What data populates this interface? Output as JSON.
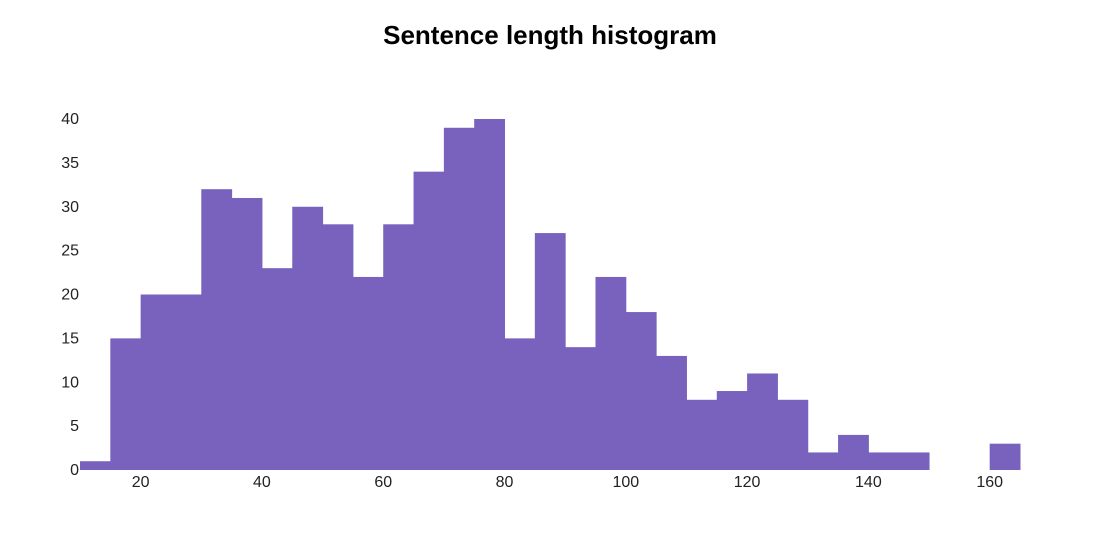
{
  "chart_data": {
    "type": "bar",
    "title": "Sentence length histogram",
    "xlabel": "",
    "ylabel": "",
    "bin_width": 5,
    "bins": [
      {
        "start": 10,
        "count": 1
      },
      {
        "start": 15,
        "count": 15
      },
      {
        "start": 20,
        "count": 20
      },
      {
        "start": 25,
        "count": 20
      },
      {
        "start": 30,
        "count": 32
      },
      {
        "start": 35,
        "count": 31
      },
      {
        "start": 40,
        "count": 23
      },
      {
        "start": 45,
        "count": 30
      },
      {
        "start": 50,
        "count": 28
      },
      {
        "start": 55,
        "count": 22
      },
      {
        "start": 60,
        "count": 28
      },
      {
        "start": 65,
        "count": 34
      },
      {
        "start": 70,
        "count": 39
      },
      {
        "start": 75,
        "count": 40
      },
      {
        "start": 80,
        "count": 15
      },
      {
        "start": 85,
        "count": 27
      },
      {
        "start": 90,
        "count": 14
      },
      {
        "start": 95,
        "count": 22
      },
      {
        "start": 100,
        "count": 18
      },
      {
        "start": 105,
        "count": 13
      },
      {
        "start": 110,
        "count": 8
      },
      {
        "start": 115,
        "count": 9
      },
      {
        "start": 120,
        "count": 11
      },
      {
        "start": 125,
        "count": 8
      },
      {
        "start": 130,
        "count": 2
      },
      {
        "start": 135,
        "count": 4
      },
      {
        "start": 140,
        "count": 2
      },
      {
        "start": 145,
        "count": 2
      },
      {
        "start": 150,
        "count": 0
      },
      {
        "start": 155,
        "count": 0
      },
      {
        "start": 160,
        "count": 3
      }
    ],
    "xlim": [
      10,
      165
    ],
    "ylim": [
      0,
      40
    ],
    "xticks": [
      20,
      40,
      60,
      80,
      100,
      120,
      140,
      160
    ],
    "yticks": [
      0,
      5,
      10,
      15,
      20,
      25,
      30,
      35,
      40
    ],
    "grid": false,
    "legend": "none",
    "bar_color": "#7862bd"
  }
}
